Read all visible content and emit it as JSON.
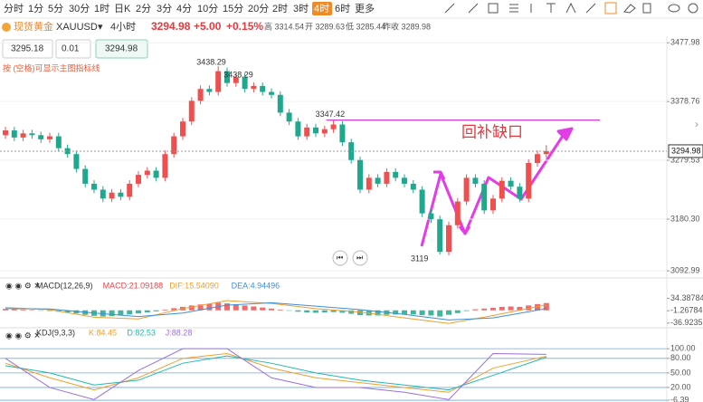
{
  "toolbar": {
    "periods": [
      "分时",
      "1分",
      "5分",
      "30分",
      "1时",
      "日K",
      "2分",
      "3分",
      "4分",
      "10分",
      "15分",
      "20分",
      "2时",
      "3时",
      "4时",
      "6时",
      "更多"
    ],
    "active": 14
  },
  "header": {
    "name": "现货黄金",
    "symbol": "XAUUSD",
    "period": "4小时",
    "price": "3294.98",
    "change": "+5.00",
    "change_pct": "+0.15%",
    "high": "高 3314.54",
    "open": "开 3289.63",
    "low": "低 3285.44",
    "prev_close": "昨收 3289.98"
  },
  "order": {
    "sell": "3295.18",
    "lot": "0.01",
    "buy": "3294.98",
    "note": "按 (空格)可显示主图指标线"
  },
  "chart_data": [
    {
      "type": "candlestick",
      "up_color": "#ef4f4f",
      "down_color": "#1fa88e",
      "grid": true,
      "ylim": [
        3084,
        3489
      ],
      "yticks": [
        3477.98,
        3378.76,
        3279.53,
        {
          "value": 3180.3,
          "label": "3180.30"
        },
        3092.99
      ],
      "annotation": "回补缺口",
      "annotation_color": "#e8383d",
      "line_color": "#d63fd6",
      "open": [
        3322,
        3330,
        3318,
        3325,
        3322,
        3315,
        3320,
        3300,
        3290,
        3265,
        3240,
        3230,
        3215,
        3225,
        3218,
        3240,
        3255,
        3262,
        3250,
        3290,
        3320,
        3345,
        3380,
        3400,
        3395,
        3430,
        3410,
        3420,
        3400,
        3405,
        3395,
        3390,
        3360,
        3345,
        3320,
        3335,
        3325,
        3332,
        3340,
        3310,
        3280,
        3230,
        3250,
        3240,
        3260,
        3250,
        3240,
        3230,
        3190,
        3180,
        3125,
        3170,
        3210,
        3250,
        3240,
        3195,
        3215,
        3245,
        3235,
        3215,
        3275,
        3290
      ],
      "high": [
        3336,
        3336,
        3331,
        3331,
        3328,
        3326,
        3326,
        3306,
        3296,
        3271,
        3246,
        3236,
        3231,
        3231,
        3246,
        3261,
        3268,
        3268,
        3296,
        3326,
        3351,
        3386,
        3406,
        3406,
        3438.29,
        3436,
        3426,
        3426,
        3411,
        3411,
        3401,
        3396,
        3366,
        3351,
        3341,
        3341,
        3338,
        3347.42,
        3346,
        3316,
        3286,
        3256,
        3256,
        3266,
        3266,
        3256,
        3246,
        3236,
        3196,
        3186,
        3176,
        3216,
        3256,
        3256,
        3246,
        3221,
        3251,
        3251,
        3241,
        3281,
        3296,
        3305
      ],
      "low": [
        3316,
        3312,
        3312,
        3316,
        3309,
        3309,
        3294,
        3284,
        3259,
        3234,
        3224,
        3209,
        3209,
        3212,
        3212,
        3234,
        3249,
        3244,
        3244,
        3284,
        3314,
        3339,
        3374,
        3389,
        3389,
        3404,
        3404,
        3394,
        3394,
        3389,
        3384,
        3354,
        3339,
        3314,
        3314,
        3319,
        3319,
        3326,
        3304,
        3274,
        3224,
        3224,
        3234,
        3234,
        3244,
        3234,
        3224,
        3184,
        3174,
        3120.77,
        3119,
        3164,
        3204,
        3234,
        3189,
        3189,
        3209,
        3229,
        3209,
        3209,
        3269,
        3284
      ],
      "close": [
        3330,
        3318,
        3325,
        3322,
        3315,
        3320,
        3300,
        3290,
        3265,
        3240,
        3230,
        3215,
        3225,
        3218,
        3240,
        3255,
        3262,
        3250,
        3290,
        3320,
        3345,
        3380,
        3400,
        3395,
        3430,
        3410,
        3420,
        3400,
        3405,
        3395,
        3390,
        3360,
        3345,
        3320,
        3335,
        3325,
        3332,
        3340,
        3310,
        3280,
        3230,
        3250,
        3240,
        3260,
        3250,
        3240,
        3230,
        3190,
        3180,
        3125,
        3170,
        3210,
        3250,
        3240,
        3195,
        3215,
        3245,
        3235,
        3215,
        3275,
        3290,
        3294.98
      ]
    },
    {
      "type": "bar",
      "title": "MACD(12,26,9)",
      "legend": [
        "MACD:21.09188",
        "DIF:15.54090",
        "DEA:4.94496"
      ],
      "legend_colors": [
        "#e0474c",
        "#f0a030",
        "#3d8fd6"
      ],
      "up_color": "#ef4f4f",
      "down_color": "#1fa88e",
      "ylim": [
        -40,
        70
      ],
      "yticks": [
        34.38784,
        -1.26784,
        -36.92352
      ],
      "values": [
        4,
        3,
        2,
        1,
        -1,
        -2,
        -4,
        -6,
        -9,
        -13,
        -16,
        -18,
        -17,
        -15,
        -12,
        -9,
        -6,
        -3,
        2,
        6,
        10,
        14,
        17,
        19,
        22,
        20,
        17,
        14,
        11,
        8,
        5,
        2,
        -1,
        -4,
        -6,
        -7,
        -6,
        -5,
        -7,
        -10,
        -14,
        -15,
        -15,
        -13,
        -12,
        -11,
        -12,
        -14,
        -15,
        -18,
        -13,
        -8,
        -2,
        3,
        5,
        7,
        10,
        11,
        10,
        14,
        18,
        21
      ],
      "series": [
        {
          "color": "#f0a030",
          "x": [
            0,
            5,
            10,
            15,
            20,
            25,
            30,
            35,
            40,
            45,
            50,
            55,
            61
          ],
          "values": [
            8,
            2,
            -20,
            -25,
            5,
            28,
            20,
            5,
            -5,
            -22,
            -38,
            -15,
            15.5409
          ]
        },
        {
          "color": "#3d8fd6",
          "x": [
            0,
            5,
            10,
            15,
            20,
            25,
            30,
            35,
            40,
            45,
            50,
            55,
            61
          ],
          "values": [
            5,
            4,
            -8,
            -18,
            -8,
            15,
            22,
            12,
            2,
            -12,
            -28,
            -22,
            4.94496
          ]
        }
      ]
    },
    {
      "type": "line",
      "title": "KDJ(9,3,3)",
      "legend": [
        "K:84.45",
        "D:82.53",
        "J:88.28"
      ],
      "grid": true,
      "grid_color": "#6aa9e0",
      "ylim": [
        -10,
        132
      ],
      "yticks": [
        {
          "value": 100,
          "label": "100.00"
        },
        {
          "value": 80,
          "label": "80.00"
        },
        {
          "value": 50,
          "label": "50.00"
        },
        {
          "value": 20,
          "label": "20.00"
        },
        -6.39
      ],
      "series": [
        {
          "color": "#f0a030",
          "x": [
            0,
            5,
            10,
            15,
            20,
            25,
            30,
            35,
            40,
            45,
            50,
            55,
            61
          ],
          "values": [
            70,
            40,
            15,
            40,
            80,
            90,
            60,
            40,
            30,
            20,
            10,
            60,
            84.45
          ]
        },
        {
          "color": "#22b8b0",
          "x": [
            0,
            5,
            10,
            15,
            20,
            25,
            30,
            35,
            40,
            45,
            50,
            55,
            61
          ],
          "values": [
            65,
            50,
            25,
            35,
            70,
            85,
            70,
            50,
            35,
            25,
            15,
            45,
            82.53
          ]
        },
        {
          "color": "#9b6fe0",
          "x": [
            0,
            5,
            10,
            15,
            20,
            25,
            30,
            35,
            40,
            45,
            50,
            55,
            61
          ],
          "values": [
            80,
            20,
            -5,
            55,
            100,
            100,
            40,
            20,
            20,
            10,
            -5,
            90,
            88.28
          ]
        }
      ]
    }
  ]
}
